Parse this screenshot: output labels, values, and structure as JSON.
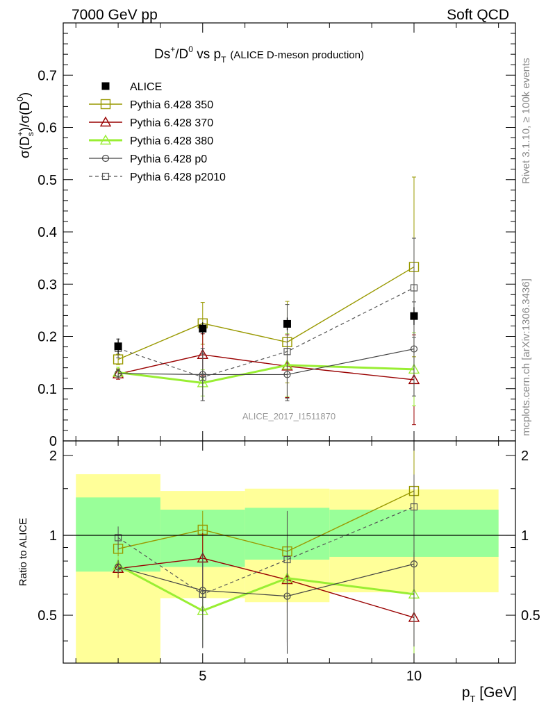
{
  "header": {
    "energy_label": "7000 GeV pp",
    "group_label": "Soft QCD",
    "side_rivet": "Rivet 3.1.10, ≥ 100k events",
    "side_mcplots": "mcplots.cern.ch [arXiv:1306.3436]"
  },
  "chart_data": {
    "type": "line",
    "title": {
      "main_pre": "Ds",
      "main_sup1": "+",
      "main_mid": "/D",
      "main_sup2": "0",
      "main_vs": " vs p",
      "main_sub": "T",
      "note": "(ALICE D-meson production)"
    },
    "ylabel": {
      "a": "σ(D",
      "sub": "s",
      "sup": "+",
      "b": ")/σ(D",
      "sup2": "0",
      "c": ")"
    },
    "ratio_ylabel": "Ratio to ALICE",
    "xlabel": {
      "a": "p",
      "sub": "T",
      "b": " [GeV]"
    },
    "watermark": "ALICE_2017_I1511870",
    "xlim": [
      1.7,
      12.4
    ],
    "ylim": [
      0,
      0.8
    ],
    "ratio_ylim": [
      0.33,
      2.27
    ],
    "xticks": [
      5,
      10
    ],
    "xtick_labels": [
      "5",
      "10"
    ],
    "yticks": [
      0,
      0.1,
      0.2,
      0.3,
      0.4,
      0.5,
      0.6,
      0.7
    ],
    "ytick_labels": [
      "0",
      "0.1",
      "0.2",
      "0.3",
      "0.4",
      "0.5",
      "0.6",
      "0.7"
    ],
    "ratio_yticks": [
      0.5,
      1,
      2
    ],
    "ratio_ytick_labels": [
      "0.5",
      "1",
      "2"
    ],
    "bins": [
      [
        2,
        4
      ],
      [
        4,
        6
      ],
      [
        6,
        8
      ],
      [
        8,
        12
      ]
    ],
    "data": {
      "name": "ALICE",
      "x": [
        3,
        5,
        7,
        10
      ],
      "y": [
        0.181,
        0.215,
        0.224,
        0.239
      ],
      "stat": [
        0.015,
        0.012,
        0.012,
        0.017
      ],
      "band_inner": [
        [
          0.73,
          1.39
        ],
        [
          0.76,
          1.25
        ],
        [
          0.81,
          1.27
        ],
        [
          0.83,
          1.25
        ]
      ],
      "band_outer": [
        [
          0.33,
          1.7
        ],
        [
          0.58,
          1.47
        ],
        [
          0.56,
          1.5
        ],
        [
          0.61,
          1.49
        ]
      ]
    },
    "series": [
      {
        "name": "Pythia 6.428 350",
        "color": "#999900",
        "marker": "square-open",
        "dash": "solid",
        "width": 1.4,
        "x": [
          3,
          5,
          7,
          10
        ],
        "y": [
          0.156,
          0.225,
          0.189,
          0.333
        ],
        "err": [
          0.01,
          0.04,
          0.078,
          0.172
        ],
        "ratio": [
          0.89,
          1.05,
          0.87,
          1.47
        ]
      },
      {
        "name": "Pythia 6.428 370",
        "color": "#990000",
        "marker": "triangle-open",
        "dash": "solid",
        "width": 1.4,
        "x": [
          3,
          5,
          7,
          10
        ],
        "y": [
          0.128,
          0.165,
          0.143,
          0.117
        ],
        "err": [
          0.01,
          0.04,
          0.06,
          0.086
        ],
        "ratio": [
          0.75,
          0.82,
          0.68,
          0.49
        ]
      },
      {
        "name": "Pythia 6.428 380",
        "color": "#99ee33",
        "marker": "triangle-open",
        "dash": "solid",
        "width": 3,
        "x": [
          3,
          5,
          7,
          10
        ],
        "y": [
          0.131,
          0.111,
          0.145,
          0.137
        ],
        "err": [
          0.01,
          0.025,
          0.06,
          0.07
        ],
        "ratio": [
          0.77,
          0.52,
          0.69,
          0.6
        ]
      },
      {
        "name": "Pythia 6.428 p0",
        "color": "#444444",
        "marker": "circle-open",
        "dash": "solid",
        "width": 1.2,
        "x": [
          3,
          5,
          7,
          10
        ],
        "y": [
          0.129,
          0.127,
          0.127,
          0.176
        ],
        "err": [
          0.008,
          0.05,
          0.05,
          0.09
        ],
        "ratio": [
          0.76,
          0.62,
          0.59,
          0.78
        ]
      },
      {
        "name": "Pythia 6.428 p2010",
        "color": "#555555",
        "marker": "square-open-small",
        "dash": "dashed",
        "width": 1.2,
        "x": [
          3,
          5,
          7,
          10
        ],
        "y": [
          0.177,
          0.122,
          0.171,
          0.293
        ],
        "err": [
          0.018,
          0.045,
          0.09,
          0.095
        ],
        "ratio": [
          0.98,
          0.6,
          0.81,
          1.28
        ]
      }
    ]
  }
}
